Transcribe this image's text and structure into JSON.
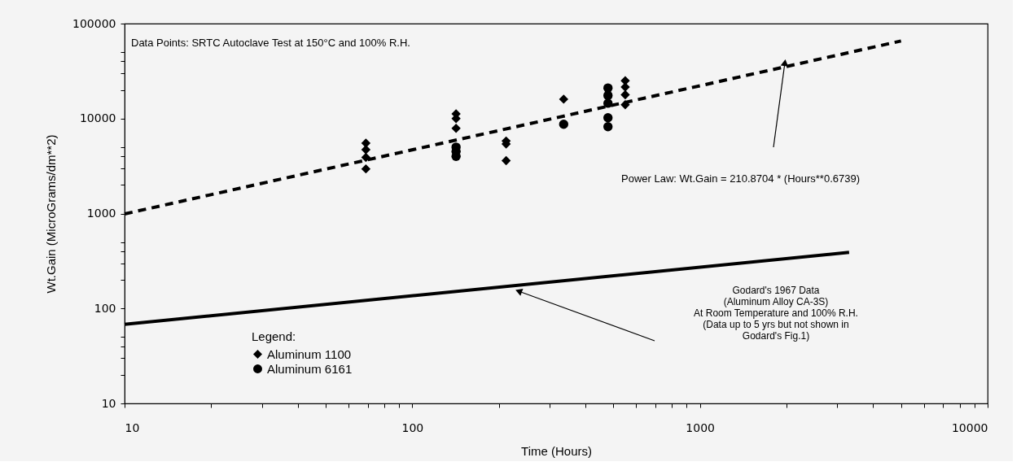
{
  "chart_data": {
    "type": "scatter",
    "xlabel": "Time (Hours)",
    "ylabel": "Wt.Gain  (MicroGrams/dm**2)",
    "legend_title": "Legend:",
    "legend": "bottom left",
    "log": "xy",
    "grid": false,
    "xlim": [
      10,
      10000
    ],
    "ylim": [
      10,
      100000
    ],
    "xticks": [
      10,
      {
        "value": 20,
        "label": null
      },
      {
        "value": 30,
        "label": null
      },
      {
        "value": 40,
        "label": null
      },
      {
        "value": 50,
        "label": null
      },
      {
        "value": 60,
        "label": null
      },
      {
        "value": 70,
        "label": null
      },
      {
        "value": 80,
        "label": null
      },
      {
        "value": 90,
        "label": null
      },
      100,
      {
        "value": 200,
        "label": null
      },
      {
        "value": 300,
        "label": null
      },
      {
        "value": 400,
        "label": null
      },
      {
        "value": 500,
        "label": null
      },
      {
        "value": 600,
        "label": null
      },
      {
        "value": 700,
        "label": null
      },
      {
        "value": 800,
        "label": null
      },
      {
        "value": 900,
        "label": null
      },
      1000,
      {
        "value": 2000,
        "label": null
      },
      {
        "value": 3000,
        "label": null
      },
      {
        "value": 4000,
        "label": null
      },
      {
        "value": 5000,
        "label": null
      },
      {
        "value": 6000,
        "label": null
      },
      {
        "value": 7000,
        "label": null
      },
      {
        "value": 8000,
        "label": null
      },
      {
        "value": 9000,
        "label": null
      },
      10000
    ],
    "yticks": [
      10,
      {
        "value": 20,
        "label": null
      },
      {
        "value": 30,
        "label": null
      },
      {
        "value": 40,
        "label": null
      },
      {
        "value": 50,
        "label": null
      },
      100,
      {
        "value": 200,
        "label": null
      },
      {
        "value": 300,
        "label": null
      },
      {
        "value": 400,
        "label": null
      },
      {
        "value": 500,
        "label": null
      },
      1000,
      {
        "value": 2000,
        "label": null
      },
      {
        "value": 3000,
        "label": null
      },
      {
        "value": 4000,
        "label": null
      },
      {
        "value": 5000,
        "label": null
      },
      10000,
      {
        "value": 20000,
        "label": null
      },
      {
        "value": 30000,
        "label": null
      },
      {
        "value": 40000,
        "label": null
      },
      {
        "value": 50000,
        "label": null
      },
      100000
    ],
    "series": [
      {
        "name": "Aluminum 1100",
        "marker": "diamond",
        "color": "#000000",
        "x": [
          69,
          69,
          69,
          69,
          142,
          142,
          142,
          212,
          212,
          212,
          336,
          479,
          550,
          550,
          550,
          550
        ],
        "values": [
          5500,
          4700,
          3900,
          2950,
          11200,
          10000,
          7900,
          5800,
          5400,
          3600,
          16000,
          null,
          25000,
          21500,
          17800,
          14000
        ]
      },
      {
        "name": "Aluminum 6161",
        "marker": "circle",
        "color": "#000000",
        "x": [
          142,
          142,
          142,
          336,
          479,
          479,
          479,
          479,
          479
        ],
        "values": [
          5000,
          4500,
          4000,
          8700,
          21000,
          17500,
          14500,
          10200,
          8200
        ]
      },
      {
        "type": "line",
        "line_style": "dashed",
        "color": "#000000",
        "x": [
          10,
          5000
        ],
        "values": [
          990,
          65600
        ]
      },
      {
        "type": "line",
        "line_style": "solid",
        "color": "#000000",
        "x": [
          10,
          3300
        ],
        "values": [
          68,
          390
        ]
      }
    ],
    "annotations": [
      "Data Points: SRTC Autoclave Test at 150°C and 100% R.H.",
      "Power Law:  Wt.Gain = 210.8704 * (Hours**0.6739)",
      "Godard's 1967 Data\n(Aluminum Alloy CA-3S)\nAt Room Temperature and 100% R.H.\n(Data up to 5 yrs but not shown in\nGodard's Fig.1)"
    ]
  }
}
